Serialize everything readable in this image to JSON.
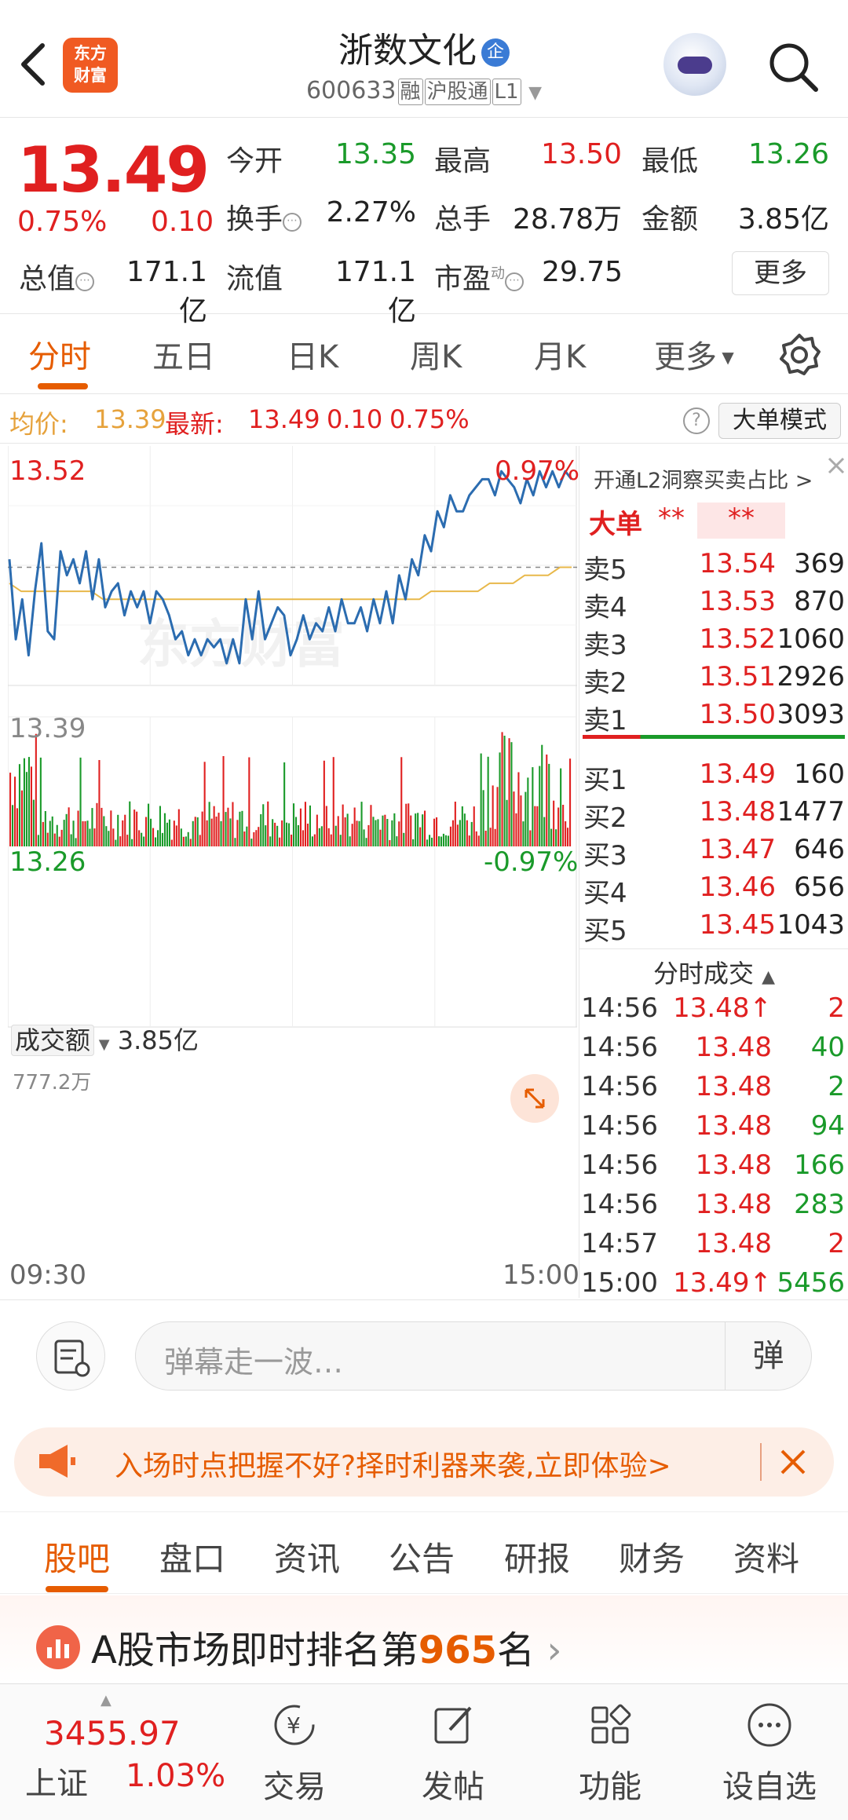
{
  "header": {
    "logo_text_top": "东方",
    "logo_text_bottom": "财富",
    "title": "浙数文化",
    "title_badge": "企",
    "code": "600633",
    "tags": [
      "融",
      "沪股通",
      "L1"
    ]
  },
  "quote": {
    "price": "13.49",
    "pct": "0.75%",
    "change": "0.10",
    "open_label": "今开",
    "open": "13.35",
    "high_label": "最高",
    "high": "13.50",
    "low_label": "最低",
    "low": "13.26",
    "turnover_label": "换手",
    "turnover": "2.27%",
    "volume_label": "总手",
    "volume": "28.78万",
    "amount_label": "金额",
    "amount": "3.85亿",
    "mktcap_label": "总值",
    "mktcap": "171.1亿",
    "float_label": "流值",
    "float": "171.1亿",
    "pe_label": "市盈",
    "pe_sup": "动",
    "pe": "29.75",
    "more": "更多"
  },
  "tabs": [
    "分时",
    "五日",
    "日K",
    "周K",
    "月K",
    "更多"
  ],
  "info": {
    "avg_label": "均价:",
    "avg": "13.39",
    "latest_label": "最新:",
    "latest": "13.49",
    "chg": "0.10",
    "pct": "0.75%",
    "big_mode": "大单模式"
  },
  "chart": {
    "high_price": "13.52",
    "high_pct": "0.97%",
    "low_price": "13.26",
    "low_pct": "-0.97%",
    "ref_price": "13.39",
    "volume_label": "成交额",
    "volume_value": "3.85亿",
    "volume_max": "777.2万",
    "time_start": "09:30",
    "time_end": "15:00",
    "watermark": "东方财富"
  },
  "chart_data": {
    "type": "line",
    "title": "",
    "ylim": [
      13.26,
      13.52
    ],
    "x_range": [
      "09:30",
      "15:00"
    ],
    "series": [
      {
        "values": [
          13.4,
          13.3,
          13.35,
          13.28,
          13.36,
          13.42,
          13.31,
          13.3,
          13.41,
          13.38,
          13.4,
          13.37,
          13.41,
          13.35,
          13.4,
          13.34,
          13.36,
          13.37,
          13.33,
          13.36,
          13.34,
          13.36,
          13.32,
          13.36,
          13.35,
          13.33,
          13.3,
          13.31,
          13.28,
          13.3,
          13.28,
          13.3,
          13.29,
          13.3,
          13.27,
          13.3,
          13.27,
          13.35,
          13.3,
          13.36,
          13.3,
          13.32,
          13.34,
          13.33,
          13.28,
          13.3,
          13.33,
          13.3,
          13.32,
          13.31,
          13.34,
          13.31,
          13.35,
          13.32,
          13.32,
          13.34,
          13.31,
          13.35,
          13.32,
          13.36,
          13.32,
          13.38,
          13.35,
          13.4,
          13.38,
          13.43,
          13.41,
          13.46,
          13.44,
          13.48,
          13.46,
          13.46,
          13.48,
          13.49,
          13.5,
          13.5,
          13.48,
          13.51,
          13.5,
          13.49,
          13.47,
          13.5,
          13.48,
          13.51,
          13.49,
          13.51,
          13.49,
          13.51,
          13.5
        ]
      },
      {
        "values": [
          13.37,
          13.36,
          13.36,
          13.36,
          13.36,
          13.36,
          13.36,
          13.36,
          13.35,
          13.35,
          13.35,
          13.35,
          13.35,
          13.35,
          13.35,
          13.35,
          13.35,
          13.35,
          13.35,
          13.35,
          13.35,
          13.35,
          13.35,
          13.35,
          13.35,
          13.35,
          13.35,
          13.35,
          13.35,
          13.35,
          13.35,
          13.35,
          13.35,
          13.35,
          13.35,
          13.35,
          13.36,
          13.36,
          13.36,
          13.36,
          13.36,
          13.37,
          13.37,
          13.37,
          13.38,
          13.38,
          13.38,
          13.39,
          13.39
        ]
      }
    ]
  },
  "book": {
    "l2_text": "开通L2洞察买卖占比 >",
    "big_label": "大单",
    "big_v1": "**",
    "big_v2": "**",
    "asks": [
      {
        "name": "卖5",
        "price": "13.54",
        "vol": "369"
      },
      {
        "name": "卖4",
        "price": "13.53",
        "vol": "870"
      },
      {
        "name": "卖3",
        "price": "13.52",
        "vol": "1060"
      },
      {
        "name": "卖2",
        "price": "13.51",
        "vol": "2926"
      },
      {
        "name": "卖1",
        "price": "13.50",
        "vol": "3093"
      }
    ],
    "bids": [
      {
        "name": "买1",
        "price": "13.49",
        "vol": "160"
      },
      {
        "name": "买2",
        "price": "13.48",
        "vol": "1477"
      },
      {
        "name": "买3",
        "price": "13.47",
        "vol": "646"
      },
      {
        "name": "买4",
        "price": "13.46",
        "vol": "656"
      },
      {
        "name": "买5",
        "price": "13.45",
        "vol": "1043"
      }
    ],
    "ticks_title": "分时成交",
    "ticks": [
      {
        "time": "14:56",
        "price": "13.48↑",
        "vol": "2",
        "dir": "red"
      },
      {
        "time": "14:56",
        "price": "13.48",
        "vol": "40",
        "dir": "green"
      },
      {
        "time": "14:56",
        "price": "13.48",
        "vol": "2",
        "dir": "green"
      },
      {
        "time": "14:56",
        "price": "13.48",
        "vol": "94",
        "dir": "green"
      },
      {
        "time": "14:56",
        "price": "13.48",
        "vol": "166",
        "dir": "green"
      },
      {
        "time": "14:56",
        "price": "13.48",
        "vol": "283",
        "dir": "green"
      },
      {
        "time": "14:57",
        "price": "13.48",
        "vol": "2",
        "dir": "red"
      },
      {
        "time": "15:00",
        "price": "13.49↑",
        "vol": "5456",
        "dir": "green"
      }
    ]
  },
  "comment": {
    "placeholder": "弹幕走一波…",
    "danmu": "弹"
  },
  "promo": {
    "text": "入场时点把握不好?择时利器来袭,立即体验>"
  },
  "subtabs": [
    "股吧",
    "盘口",
    "资讯",
    "公告",
    "研报",
    "财务",
    "资料"
  ],
  "rank": {
    "prefix": "A股市场即时排名第",
    "num": "965",
    "suffix": "名",
    "arrow": "›"
  },
  "bottom": {
    "index_value": "3455.97",
    "index_name": "上证",
    "index_pct": "1.03%",
    "nav": [
      "交易",
      "发帖",
      "功能",
      "设自选"
    ]
  },
  "colors": {
    "up": "#e02020",
    "down": "#1a9a2a",
    "accent": "#e65c00",
    "line": "#2b6cb0",
    "avg": "#e8b84a"
  }
}
